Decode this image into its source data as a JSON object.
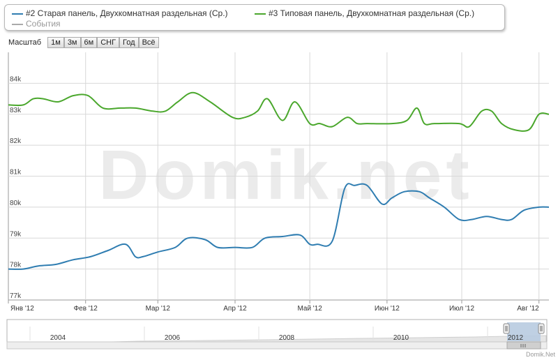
{
  "legend": [
    {
      "label": "#2 Старая панель, Двухкомнатная раздельная (Ср.)",
      "color": "#2f7db1"
    },
    {
      "label": "#3 Типовая панель, Двухкомнатная раздельная (Ср.)",
      "color": "#4aa72c"
    },
    {
      "label": "События",
      "color": "#aaaaaa"
    }
  ],
  "zoom": {
    "label": "Масштаб",
    "buttons": [
      "1м",
      "3м",
      "6м",
      "СНГ",
      "Год",
      "Всё"
    ]
  },
  "watermark": "Domik.net",
  "credit": "Domik.Net",
  "colors": {
    "series2": "#2f7db1",
    "series3": "#4aa72c",
    "grid": "#d8d8d8",
    "navigator_fill": "#b8cbe0"
  },
  "chart_data": {
    "type": "line",
    "grid": true,
    "ylim": [
      77000,
      85000
    ],
    "y_ticks": [
      "77k",
      "78k",
      "79k",
      "80k",
      "81k",
      "82k",
      "83k",
      "84k"
    ],
    "y_tick_values": [
      77000,
      78000,
      79000,
      80000,
      81000,
      82000,
      83000,
      84000
    ],
    "x_ticks": [
      "Янв '12",
      "Фев '12",
      "Мар '12",
      "Апр '12",
      "Май '12",
      "Июн '12",
      "Июл '12",
      "Авг '12"
    ],
    "x_tick_dates": [
      "2012-01-01",
      "2012-02-01",
      "2012-03-01",
      "2012-04-01",
      "2012-05-01",
      "2012-06-01",
      "2012-07-01",
      "2012-08-01"
    ],
    "xlim": [
      "2012-01-01",
      "2012-08-05"
    ],
    "series": [
      {
        "name": "#2 Старая панель, Двухкомнатная раздельная (Ср.)",
        "x": [
          "2012-01-01",
          "2012-01-07",
          "2012-01-13",
          "2012-01-20",
          "2012-01-27",
          "2012-02-03",
          "2012-02-10",
          "2012-02-17",
          "2012-02-21",
          "2012-02-24",
          "2012-03-01",
          "2012-03-08",
          "2012-03-13",
          "2012-03-20",
          "2012-03-25",
          "2012-04-01",
          "2012-04-08",
          "2012-04-13",
          "2012-04-20",
          "2012-04-27",
          "2012-05-01",
          "2012-05-04",
          "2012-05-10",
          "2012-05-15",
          "2012-05-19",
          "2012-05-24",
          "2012-05-30",
          "2012-06-03",
          "2012-06-08",
          "2012-06-14",
          "2012-06-18",
          "2012-06-24",
          "2012-06-30",
          "2012-07-05",
          "2012-07-11",
          "2012-07-17",
          "2012-07-21",
          "2012-07-26",
          "2012-08-01",
          "2012-08-05"
        ],
        "values": [
          78000,
          78000,
          78100,
          78150,
          78300,
          78400,
          78600,
          78800,
          78400,
          78400,
          78550,
          78700,
          79000,
          78950,
          78700,
          78700,
          78700,
          79000,
          79050,
          79100,
          78800,
          78800,
          78900,
          80600,
          80700,
          80700,
          80100,
          80300,
          80500,
          80500,
          80300,
          80000,
          79600,
          79600,
          79700,
          79600,
          79600,
          79900,
          80000,
          80000
        ]
      },
      {
        "name": "#3 Типовая панель, Двухкомнатная раздельная (Ср.)",
        "x": [
          "2012-01-01",
          "2012-01-07",
          "2012-01-11",
          "2012-01-15",
          "2012-01-21",
          "2012-01-27",
          "2012-02-02",
          "2012-02-08",
          "2012-02-15",
          "2012-02-21",
          "2012-02-28",
          "2012-03-04",
          "2012-03-09",
          "2012-03-15",
          "2012-03-22",
          "2012-03-31",
          "2012-04-05",
          "2012-04-10",
          "2012-04-14",
          "2012-04-20",
          "2012-04-25",
          "2012-05-01",
          "2012-05-05",
          "2012-05-10",
          "2012-05-16",
          "2012-05-20",
          "2012-05-24",
          "2012-06-03",
          "2012-06-09",
          "2012-06-13",
          "2012-06-16",
          "2012-06-20",
          "2012-06-30",
          "2012-07-04",
          "2012-07-09",
          "2012-07-13",
          "2012-07-17",
          "2012-07-22",
          "2012-07-28",
          "2012-08-01",
          "2012-08-05"
        ],
        "values": [
          83300,
          83300,
          83500,
          83500,
          83400,
          83600,
          83600,
          83200,
          83200,
          83200,
          83100,
          83100,
          83400,
          83700,
          83400,
          82900,
          82900,
          83100,
          83500,
          82800,
          83400,
          82700,
          82700,
          82600,
          82900,
          82700,
          82700,
          82700,
          82800,
          83200,
          82700,
          82700,
          82700,
          82600,
          83100,
          83100,
          82700,
          82500,
          82500,
          83000,
          83000
        ]
      }
    ],
    "navigator": {
      "x_ticks": [
        "2004",
        "2006",
        "2008",
        "2010",
        "2012"
      ],
      "range": [
        "2012-01-01",
        "2012-08-05"
      ]
    }
  }
}
